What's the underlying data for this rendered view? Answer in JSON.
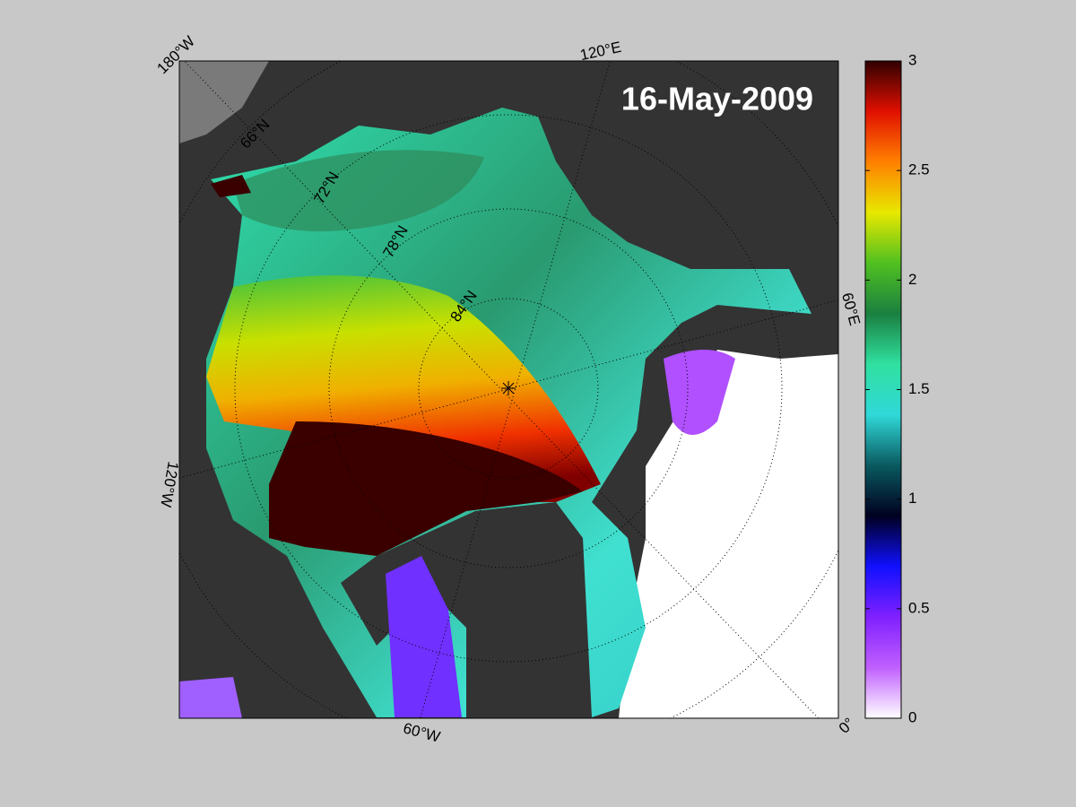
{
  "map": {
    "date": "16-May-2009",
    "longitude_labels": [
      "180°W",
      "120°E",
      "60°E",
      "0°",
      "60°W",
      "120°W"
    ],
    "latitude_labels": [
      "66°N",
      "72°N",
      "78°N",
      "84°N"
    ],
    "colorbar": {
      "lim": [
        0,
        3
      ],
      "ticks": [
        0,
        0.5,
        1,
        1.5,
        2,
        2.5,
        3
      ],
      "colors": [
        "#ffffff",
        "#c060ff",
        "#8020ff",
        "#1010ff",
        "#000020",
        "#0a5a60",
        "#30d8d8",
        "#30e0a0",
        "#1a8040",
        "#50c020",
        "#e8e800",
        "#ff8000",
        "#e01000",
        "#300000"
      ]
    }
  }
}
